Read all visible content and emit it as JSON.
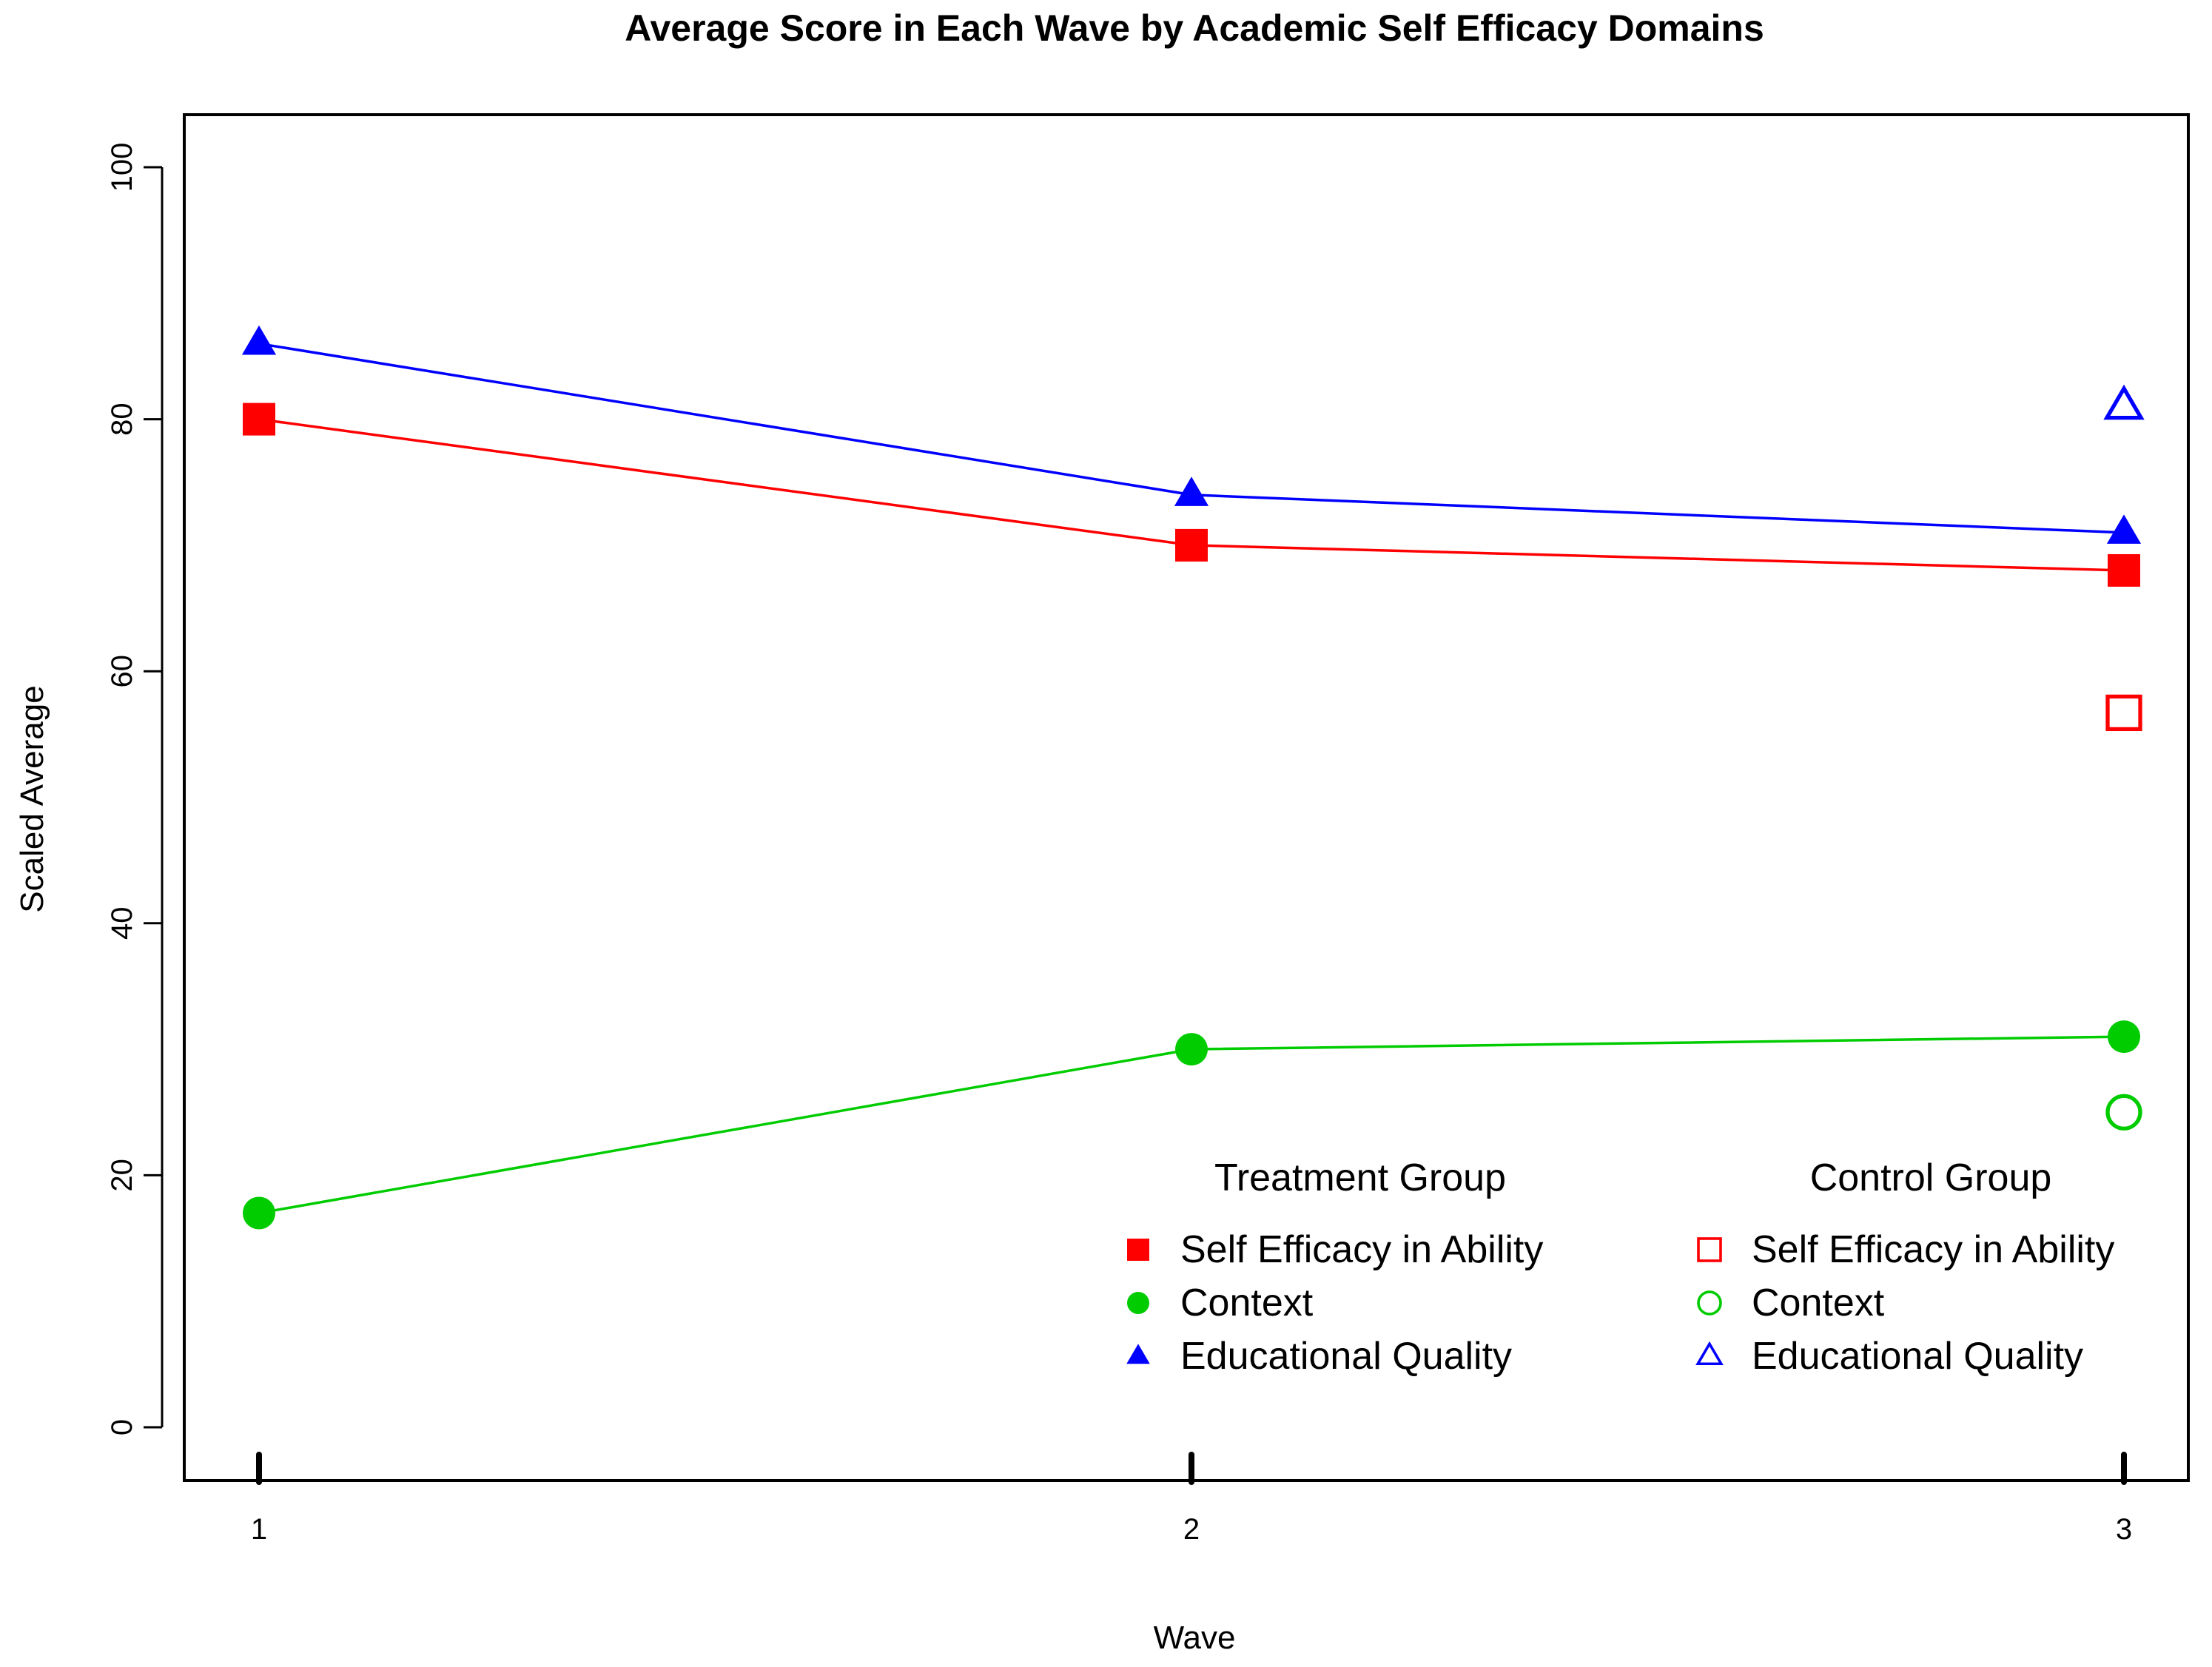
{
  "chart_data": {
    "type": "line",
    "title": "Average Score in Each Wave by Academic Self Efficacy Domains",
    "xlabel": "Wave",
    "ylabel": "Scaled Average",
    "x": [
      1,
      2,
      3
    ],
    "x_tick_labels": [
      "1",
      "2",
      "3"
    ],
    "y_ticks": [
      0,
      20,
      40,
      60,
      80,
      100
    ],
    "y_tick_labels": [
      "0",
      "20",
      "40",
      "60",
      "80",
      "100"
    ],
    "ylim": [
      -4,
      104
    ],
    "grid": false,
    "series": [
      {
        "name": "Self Efficacy in Ability",
        "group": "Treatment Group",
        "marker": "filled-square",
        "color": "#ff0000",
        "x": [
          1,
          2,
          3
        ],
        "values": [
          80,
          70,
          68
        ]
      },
      {
        "name": "Context",
        "group": "Treatment Group",
        "marker": "filled-circle",
        "color": "#00cc00",
        "x": [
          1,
          2,
          3
        ],
        "values": [
          17,
          30,
          31
        ]
      },
      {
        "name": "Educational Quality",
        "group": "Treatment Group",
        "marker": "filled-triangle",
        "color": "#0000ff",
        "x": [
          1,
          2,
          3
        ],
        "values": [
          86,
          74,
          71
        ]
      },
      {
        "name": "Self Efficacy in Ability",
        "group": "Control Group",
        "marker": "open-square",
        "color": "#ff0000",
        "x": [
          3
        ],
        "values": [
          56.7
        ]
      },
      {
        "name": "Context",
        "group": "Control Group",
        "marker": "open-circle",
        "color": "#00cc00",
        "x": [
          3
        ],
        "values": [
          25
        ]
      },
      {
        "name": "Educational Quality",
        "group": "Control Group",
        "marker": "open-triangle",
        "color": "#0000ff",
        "x": [
          3
        ],
        "values": [
          81
        ]
      }
    ],
    "legend": {
      "placement": "bottom-right",
      "groups": [
        {
          "title": "Treatment Group",
          "items": [
            {
              "label": "Self Efficacy in Ability",
              "marker": "filled-square",
              "color": "#ff0000"
            },
            {
              "label": "Context",
              "marker": "filled-circle",
              "color": "#00cc00"
            },
            {
              "label": "Educational Quality",
              "marker": "filled-triangle",
              "color": "#0000ff"
            }
          ]
        },
        {
          "title": "Control Group",
          "items": [
            {
              "label": "Self Efficacy in Ability",
              "marker": "open-square",
              "color": "#ff0000"
            },
            {
              "label": "Context",
              "marker": "open-circle",
              "color": "#00cc00"
            },
            {
              "label": "Educational Quality",
              "marker": "open-triangle",
              "color": "#0000ff"
            }
          ]
        }
      ]
    }
  }
}
